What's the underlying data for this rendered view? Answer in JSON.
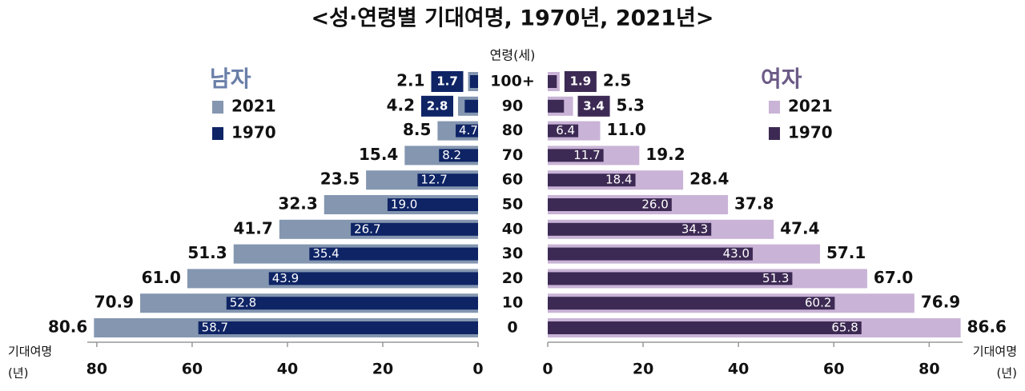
{
  "chart_data": {
    "type": "butterfly",
    "title": "<성·연령별 기대여명, 1970년, 2021년>",
    "y_label": "연령(세)",
    "categories": [
      "100+",
      "90",
      "80",
      "70",
      "60",
      "50",
      "40",
      "30",
      "20",
      "10",
      "0"
    ],
    "left": {
      "title": "남자",
      "x_label": "기대여명",
      "x_unit": "(년)",
      "xlim": [
        0,
        82
      ],
      "xticks": [
        0,
        20,
        40,
        60,
        80
      ],
      "title_color": "#6a7fa8",
      "series": [
        {
          "name": "2021",
          "color": "#8496b0",
          "values": [
            2.1,
            4.2,
            8.5,
            15.4,
            23.5,
            32.3,
            41.7,
            51.3,
            61.0,
            70.9,
            80.6
          ],
          "value_labels": [
            "2.1",
            "4.2",
            "8.5",
            "15.4",
            "23.5",
            "32.3",
            "41.7",
            "51.3",
            "61.0",
            "70.9",
            "80.6"
          ]
        },
        {
          "name": "1970",
          "color": "#0e2465",
          "values": [
            1.7,
            2.8,
            4.7,
            8.2,
            12.7,
            19.0,
            26.7,
            35.4,
            43.9,
            52.8,
            58.7
          ],
          "value_labels": [
            "1.7",
            "2.8",
            "4.7",
            "8.2",
            "12.7",
            "19.0",
            "26.7",
            "35.4",
            "43.9",
            "52.8",
            "58.7"
          ]
        }
      ]
    },
    "right": {
      "title": "여자",
      "x_label": "기대여명",
      "x_unit": "(년)",
      "xlim": [
        0,
        87
      ],
      "xticks": [
        0,
        20,
        40,
        60,
        80
      ],
      "title_color": "#6b5a86",
      "series": [
        {
          "name": "2021",
          "color": "#c9b3d6",
          "values": [
            2.5,
            5.3,
            11.0,
            19.2,
            28.4,
            37.8,
            47.4,
            57.1,
            67.0,
            76.9,
            86.6
          ],
          "value_labels": [
            "2.5",
            "5.3",
            "11.0",
            "19.2",
            "28.4",
            "37.8",
            "47.4",
            "57.1",
            "67.0",
            "76.9",
            "86.6"
          ]
        },
        {
          "name": "1970",
          "color": "#3d2a54",
          "values": [
            1.9,
            3.4,
            6.4,
            11.7,
            18.4,
            26.0,
            34.3,
            43.0,
            51.3,
            60.2,
            65.8
          ],
          "value_labels": [
            "1.9",
            "3.4",
            "6.4",
            "11.7",
            "18.4",
            "26.0",
            "34.3",
            "43.0",
            "51.3",
            "60.2",
            "65.8"
          ]
        }
      ]
    }
  }
}
